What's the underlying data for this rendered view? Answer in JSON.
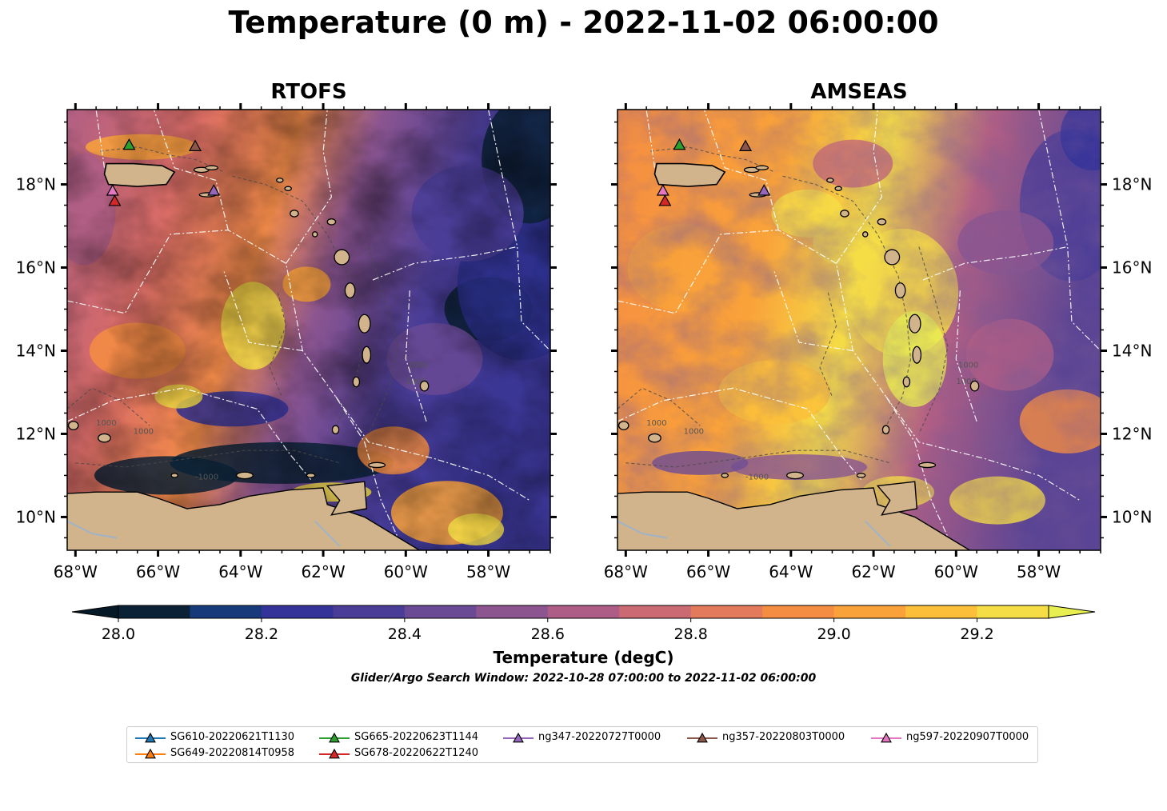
{
  "title": "Temperature (0 m) - 2022-11-02 06:00:00",
  "panels": [
    {
      "title": "RTOFS",
      "variant": "rtofs"
    },
    {
      "title": "AMSEAS",
      "variant": "amseas"
    }
  ],
  "map": {
    "lon_range": [
      -68.2,
      -56.5
    ],
    "lat_range": [
      9.2,
      19.8
    ],
    "lon_ticks": [
      {
        "value": -68,
        "label": "68°W"
      },
      {
        "value": -66,
        "label": "66°W"
      },
      {
        "value": -64,
        "label": "64°W"
      },
      {
        "value": -62,
        "label": "62°W"
      },
      {
        "value": -60,
        "label": "60°W"
      },
      {
        "value": -58,
        "label": "58°W"
      }
    ],
    "lat_ticks": [
      {
        "value": 10,
        "label": "10°N"
      },
      {
        "value": 12,
        "label": "12°N"
      },
      {
        "value": 14,
        "label": "14°N"
      },
      {
        "value": 16,
        "label": "16°N"
      },
      {
        "value": 18,
        "label": "18°N"
      }
    ],
    "land_color": "#d2b48c",
    "eez_line_color": "#ffffff",
    "contour_labels": [
      "1000",
      "1000",
      "-1000",
      "1000",
      "1000"
    ]
  },
  "colorbar": {
    "title": "Temperature (degC)",
    "min": 28.0,
    "max": 29.3,
    "step": 0.1,
    "extend": "both",
    "colors": [
      "#0b2236",
      "#163a7a",
      "#33339a",
      "#4a3d97",
      "#6a4a94",
      "#8c5590",
      "#ae5e86",
      "#cc6a74",
      "#e47a5c",
      "#f48d42",
      "#f9a23a",
      "#fbbf3a",
      "#f5dd46"
    ],
    "under_color": "#051a26",
    "over_color": "#e8f051",
    "tick_labels": [
      {
        "value": 28.0,
        "label": "28.0"
      },
      {
        "value": 28.2,
        "label": "28.2"
      },
      {
        "value": 28.4,
        "label": "28.4"
      },
      {
        "value": 28.6,
        "label": "28.6"
      },
      {
        "value": 28.8,
        "label": "28.8"
      },
      {
        "value": 29.0,
        "label": "29.0"
      },
      {
        "value": 29.2,
        "label": "29.2"
      }
    ]
  },
  "search_window": "Glider/Argo Search Window: 2022-10-28 07:00:00 to 2022-11-02 06:00:00",
  "platforms": [
    {
      "name": "SG610-20220621T1130",
      "color": "#1f77b4",
      "lon": null,
      "lat": null
    },
    {
      "name": "SG649-20220814T0958",
      "color": "#ff7f0e",
      "lon": null,
      "lat": null
    },
    {
      "name": "SG665-20220623T1144",
      "color": "#2ca02c",
      "lon": -66.7,
      "lat": 18.95
    },
    {
      "name": "SG678-20220622T1240",
      "color": "#d62728",
      "lon": -67.05,
      "lat": 17.6
    },
    {
      "name": "ng347-20220727T0000",
      "color": "#9467bd",
      "lon": -64.65,
      "lat": 17.85
    },
    {
      "name": "ng357-20220803T0000",
      "color": "#8c564b",
      "lon": -65.1,
      "lat": 18.92
    },
    {
      "name": "ng597-20220907T0000",
      "color": "#e377c2",
      "lon": -67.1,
      "lat": 17.85
    }
  ]
}
